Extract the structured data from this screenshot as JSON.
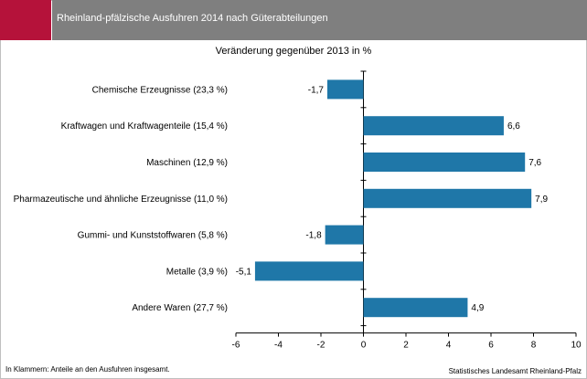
{
  "header": {
    "title": "Rheinland-pfälzische Ausfuhren 2014 nach Güterabteilungen",
    "accent_color": "#b5123a",
    "bar_color": "#7f7f7f"
  },
  "footnote": "In Klammern: Anteile an den Ausfuhren insgesamt.",
  "source": "Statistisches Landesamt Rheinland-Pfalz",
  "chart_data": {
    "type": "bar",
    "orientation": "horizontal",
    "title": "Veränderung gegenüber 2013 in %",
    "categories": [
      "Chemische Erzeugnisse (23,3 %)",
      "Kraftwagen und Kraftwagenteile (15,4 %)",
      "Maschinen (12,9 %)",
      "Pharmazeutische und ähnliche Erzeugnisse (11,0 %)",
      "Gummi- und Kunststoffwaren (5,8 %)",
      "Metalle (3,9 %)",
      "Andere Waren (27,7 %)"
    ],
    "values": [
      -1.7,
      6.6,
      7.6,
      7.9,
      -1.8,
      -5.1,
      4.9
    ],
    "value_labels": [
      "-1,7",
      "6,6",
      "7,6",
      "7,9",
      "-1,8",
      "-5,1",
      "4,9"
    ],
    "xlim": [
      -6,
      10
    ],
    "xticks": [
      -6,
      -4,
      -2,
      0,
      2,
      4,
      6,
      8,
      10
    ],
    "bar_color": "#1f77a8",
    "grid": false,
    "legend": "none"
  }
}
